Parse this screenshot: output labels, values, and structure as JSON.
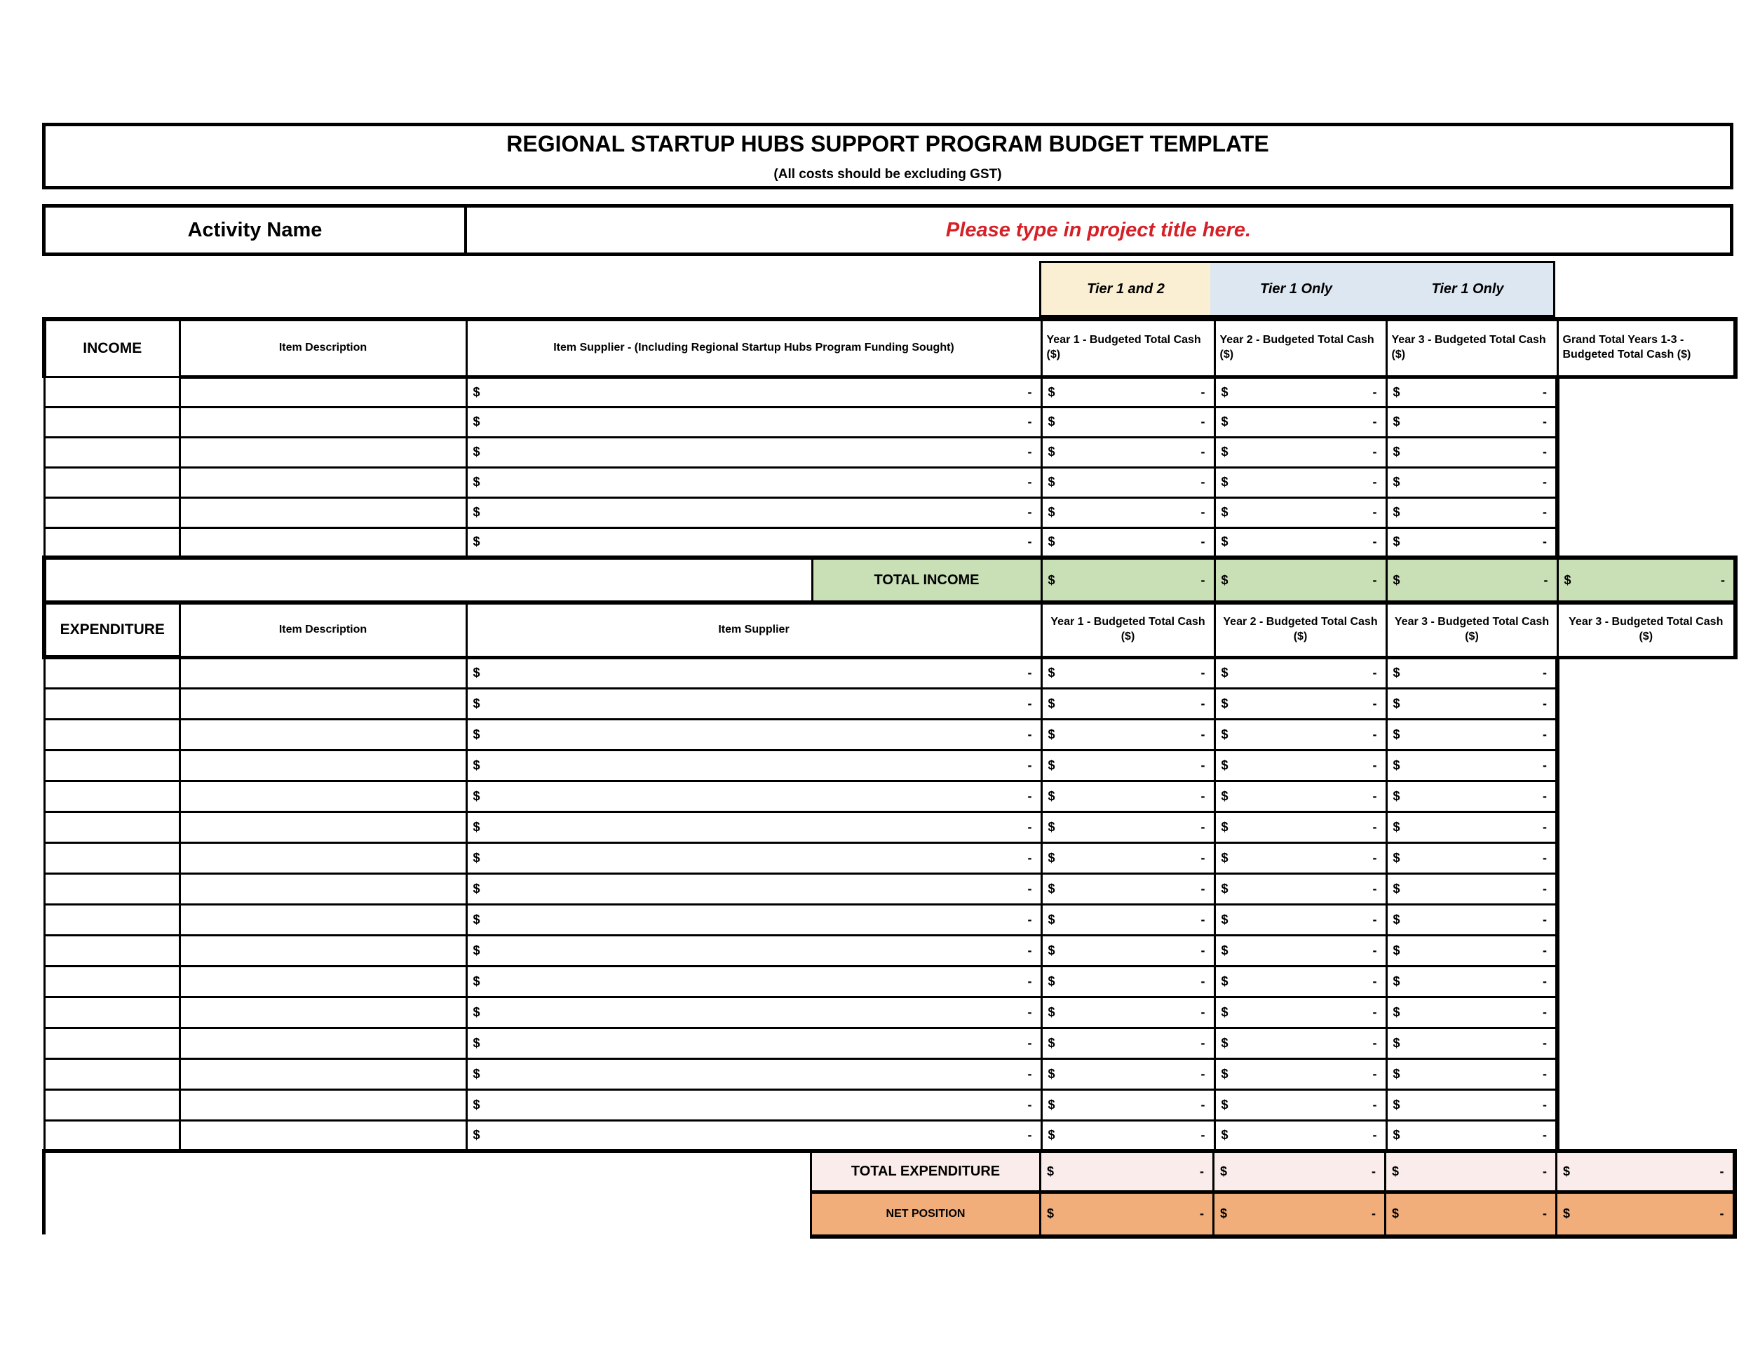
{
  "title_box": {
    "title": "REGIONAL STARTUP HUBS SUPPORT PROGRAM BUDGET TEMPLATE",
    "subtitle": "(All costs should be excluding GST)"
  },
  "activity": {
    "label": "Activity Name",
    "value_placeholder": "Please type in project title here."
  },
  "tier_row": {
    "labels": [
      "Tier 1 and 2",
      "Tier 1 Only",
      "Tier 1 Only"
    ]
  },
  "income": {
    "section_label": "INCOME",
    "headers": {
      "item_description": "Item Description",
      "item_supplier": "Item Supplier - (Including Regional Startup Hubs Program Funding Sought)",
      "year1": "Year 1 - Budgeted Total Cash ($)",
      "year2": "Year 2 - Budgeted Total Cash ($)",
      "year3": "Year 3 - Budgeted Total Cash ($)",
      "grand_total": "Grand Total Years 1-3 - Budgeted Total Cash ($)"
    },
    "row_count": 6,
    "total_label": "TOTAL INCOME"
  },
  "expenditure": {
    "section_label": "EXPENDITURE",
    "headers": {
      "item_description": "Item Description",
      "item_supplier": "Item Supplier",
      "year1": "Year 1 - Budgeted Total Cash ($)",
      "year2": "Year 2 - Budgeted Total Cash ($)",
      "year3": "Year 3 - Budgeted Total Cash ($)",
      "year3_dup": "Year 3 - Budgeted Total Cash ($)"
    },
    "row_count": 16,
    "total_label": "TOTAL EXPENDITURE",
    "net_label": "NET POSITION"
  },
  "money_cell": {
    "currency": "$",
    "value": "-"
  },
  "colors": {
    "tier12_bg": "#faefd2",
    "tier1only_bg": "#dde7f2",
    "total_income_bg": "#c9dfb6",
    "total_expenditure_bg": "#f9ecea",
    "net_position_bg": "#f1ae7a",
    "placeholder_red": "#d62027"
  }
}
